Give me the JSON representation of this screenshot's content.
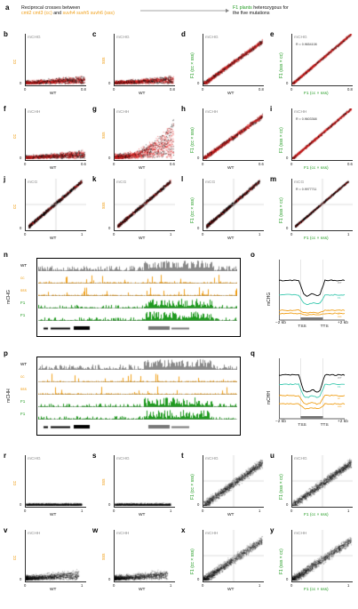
{
  "header": {
    "panel_letter": "a",
    "left_line1": "Reciprocal crosses between",
    "left_line2a": "cmt2 cmt3 (cc)",
    "left_line2b": "and",
    "left_line2c": "suvh4 suvh5 suvh6 (sss)",
    "right_line1a": "F1 plants",
    "right_line1b": "heterozygous for",
    "right_line2": "the five mutations"
  },
  "colors": {
    "orange": "#f0a01a",
    "green": "#1f9a1f",
    "red": "#e02020",
    "gray": "#8a8a8a",
    "teal": "#3cc9b0",
    "black": "#000000"
  },
  "scatter_rows_top": [
    {
      "context": "mCHG",
      "panels": [
        {
          "letter": "b",
          "context": "mCHG",
          "ylabel": "cc",
          "ycolor": "orange",
          "xlabel": "WT",
          "xmax": "0.8",
          "kind": "flat"
        },
        {
          "letter": "c",
          "context": "mCHG",
          "ylabel": "sss",
          "ycolor": "orange",
          "xlabel": "WT",
          "xmax": "0.8",
          "kind": "flat"
        },
        {
          "letter": "d",
          "context": "mCHG",
          "ylabel": "F1 (cc × sss)",
          "ycolor": "green",
          "xlabel": "WT",
          "xmax": "0.8",
          "kind": "diag"
        },
        {
          "letter": "e",
          "context": "mCHG",
          "ylabel": "F1 (sss × cc)",
          "ycolor": "green",
          "xlabel": "F1 (cc × sss)",
          "xmax": "0.8",
          "kind": "tight",
          "r": "R = 0.9654108"
        }
      ]
    },
    {
      "context": "mCHH",
      "panels": [
        {
          "letter": "f",
          "context": "mCHH",
          "ylabel": "cc",
          "ycolor": "orange",
          "xlabel": "WT",
          "xmax": "0.6",
          "kind": "flat"
        },
        {
          "letter": "g",
          "context": "mCHH",
          "ylabel": "sss",
          "ycolor": "orange",
          "xlabel": "WT",
          "xmax": "0.6",
          "kind": "flat2"
        },
        {
          "letter": "h",
          "context": "mCHH",
          "ylabel": "F1 (cc × sss)",
          "ycolor": "green",
          "xlabel": "WT",
          "xmax": "0.6",
          "kind": "diag"
        },
        {
          "letter": "i",
          "context": "mCHH",
          "ylabel": "F1 (sss × cc)",
          "ycolor": "green",
          "xlabel": "F1 (cc × sss)",
          "xmax": "0.6",
          "kind": "tight",
          "r": "R = 0.9603368"
        }
      ]
    },
    {
      "context": "mCG",
      "panels": [
        {
          "letter": "j",
          "context": "mCG",
          "ylabel": "cc",
          "ycolor": "orange",
          "xlabel": "WT",
          "xmax": "1",
          "kind": "mcg"
        },
        {
          "letter": "k",
          "context": "mCG",
          "ylabel": "sss",
          "ycolor": "orange",
          "xlabel": "WT",
          "xmax": "1",
          "kind": "mcg"
        },
        {
          "letter": "l",
          "context": "mCG",
          "ylabel": "F1 (cc × sss)",
          "ycolor": "green",
          "xlabel": "WT",
          "xmax": "1",
          "kind": "mcg"
        },
        {
          "letter": "m",
          "context": "mCG",
          "ylabel": "F1 (sss × cc)",
          "ycolor": "green",
          "xlabel": "F1 (cc × sss)",
          "xmax": "1",
          "kind": "mcgtight",
          "r": "R = 0.9977711"
        }
      ]
    }
  ],
  "scatter_rows_bottom": [
    {
      "context": "mCHG",
      "panels": [
        {
          "letter": "r",
          "context": "mCHG",
          "ylabel": "cc",
          "ycolor": "orange",
          "xlabel": "WT",
          "xmax": "1",
          "kind": "bflat"
        },
        {
          "letter": "s",
          "context": "mCHG",
          "ylabel": "sss",
          "ycolor": "orange",
          "xlabel": "WT",
          "xmax": "1",
          "kind": "bflat"
        },
        {
          "letter": "t",
          "context": "mCHG",
          "ylabel": "F1 (cc × sss)",
          "ycolor": "green",
          "xlabel": "WT",
          "xmax": "1",
          "kind": "bdiag"
        },
        {
          "letter": "u",
          "context": "mCHG",
          "ylabel": "F1 (sss × cc)",
          "ycolor": "green",
          "xlabel": "F1 (cc × sss)",
          "xmax": "1",
          "kind": "bdiag"
        }
      ]
    },
    {
      "context": "mCHH",
      "panels": [
        {
          "letter": "v",
          "context": "mCHH",
          "ylabel": "cc",
          "ycolor": "orange",
          "xlabel": "WT",
          "xmax": "1",
          "kind": "bflat2"
        },
        {
          "letter": "w",
          "context": "mCHH",
          "ylabel": "sss",
          "ycolor": "orange",
          "xlabel": "WT",
          "xmax": "1",
          "kind": "bflat2"
        },
        {
          "letter": "x",
          "context": "mCHH",
          "ylabel": "F1 (cc × sss)",
          "ycolor": "green",
          "xlabel": "WT",
          "xmax": "1",
          "kind": "bdiag2"
        },
        {
          "letter": "y",
          "context": "mCHH",
          "ylabel": "F1 (sss × cc)",
          "ycolor": "green",
          "xlabel": "F1 (cc × sss)",
          "xmax": "1",
          "kind": "bdiag2"
        }
      ]
    }
  ],
  "tracks": [
    {
      "letter": "n",
      "context": "mCHG",
      "rows": [
        "WT",
        "cc",
        "sss",
        "F1",
        "F1"
      ]
    },
    {
      "letter": "p",
      "context": "mCHH",
      "rows": [
        "WT",
        "cc",
        "sss",
        "F1",
        "F1"
      ]
    }
  ],
  "profiles": [
    {
      "letter": "o",
      "ylabel": "mCHG",
      "x_start": "−2 kb",
      "x_tss": "TSS",
      "x_tts": "TTS",
      "x_end": "+2 kb",
      "line_labels": [
        "WT",
        "F1",
        "cc",
        "sss"
      ]
    },
    {
      "letter": "q",
      "ylabel": "mCHH",
      "x_start": "−2 kb",
      "x_tss": "TSS",
      "x_tts": "TTS",
      "x_end": "+2 kb",
      "line_labels": [
        "WT",
        "F1",
        "cc",
        "sss"
      ]
    }
  ],
  "axis": {
    "zero": "0"
  }
}
